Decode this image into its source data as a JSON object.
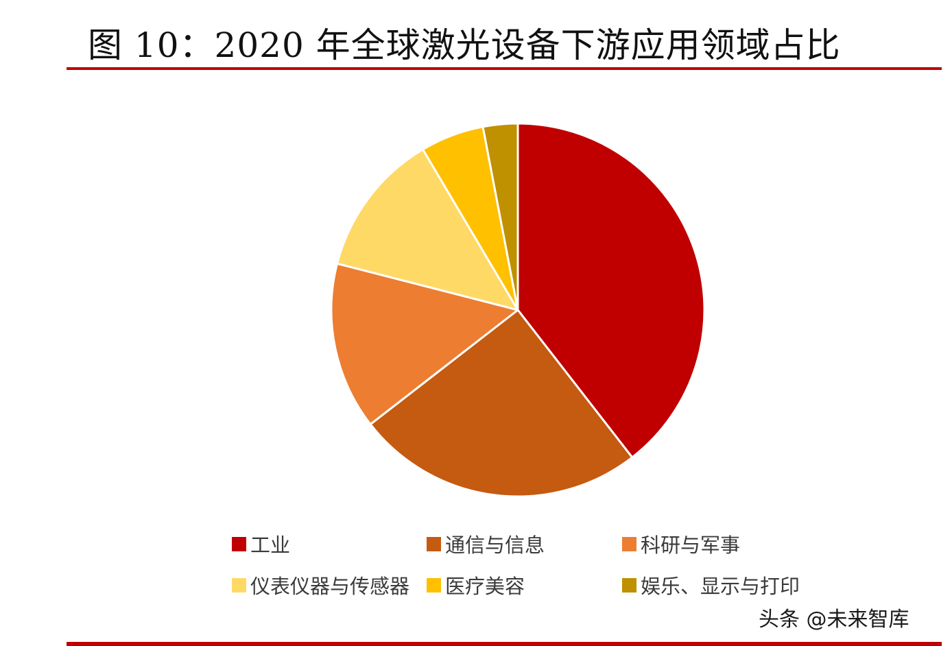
{
  "title": "图 10：2020 年全球激光设备下游应用领域占比",
  "watermark": "头条 @未来智库",
  "chart_data": {
    "type": "pie",
    "title": "图 10：2020 年全球激光设备下游应用领域占比",
    "start_angle": "12 o'clock",
    "direction": "clockwise",
    "legend_position": "bottom",
    "series": [
      {
        "name": "工业",
        "value": 39.5,
        "color": "#c00000"
      },
      {
        "name": "通信与信息",
        "value": 25.0,
        "color": "#c55a11"
      },
      {
        "name": "科研与军事",
        "value": 14.5,
        "color": "#ed7d31"
      },
      {
        "name": "仪表仪器与传感器",
        "value": 12.5,
        "color": "#ffd966"
      },
      {
        "name": "医疗美容",
        "value": 5.5,
        "color": "#ffc000"
      },
      {
        "name": "娱乐、显示与打印",
        "value": 3.0,
        "color": "#bf9000"
      }
    ]
  }
}
